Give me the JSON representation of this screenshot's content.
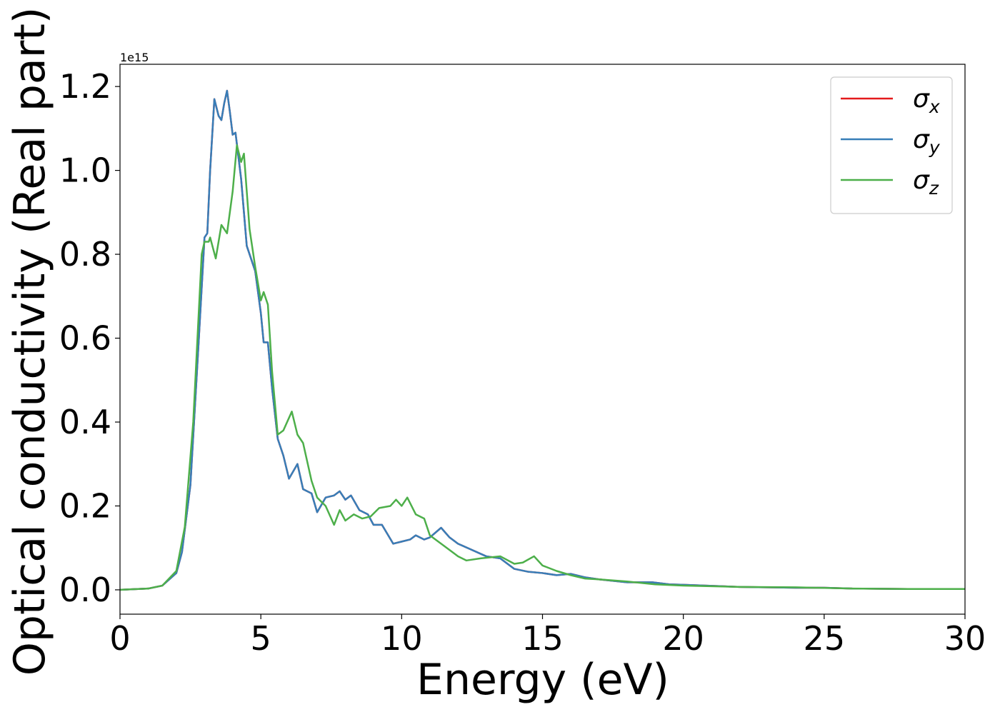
{
  "chart_data": {
    "type": "line",
    "xlabel": "Energy (eV)",
    "ylabel": "Optical conductivity (Real part)",
    "y_offset_text": "1e15",
    "xlim": [
      0,
      30
    ],
    "xticks": [
      0,
      5,
      10,
      15,
      20,
      25,
      30
    ],
    "ylim": [
      -0.058,
      1.253
    ],
    "yticks": [
      {
        "value": 0,
        "label": "0.0"
      },
      0.2,
      0.4,
      0.6,
      0.8,
      {
        "value": 1,
        "label": "1.0"
      },
      1.2
    ],
    "legend": "upper right",
    "series": [
      {
        "name": "σx",
        "color": "#e41a1c",
        "x": [
          0,
          1,
          1.5,
          2,
          2.2,
          2.5,
          2.8,
          3.0,
          3.1,
          3.2,
          3.35,
          3.5,
          3.6,
          3.7,
          3.8,
          3.9,
          4.0,
          4.1,
          4.3,
          4.5,
          4.8,
          5.0,
          5.1,
          5.25,
          5.4,
          5.6,
          5.8,
          6.0,
          6.3,
          6.5,
          6.8,
          7.0,
          7.3,
          7.6,
          7.8,
          8.0,
          8.2,
          8.5,
          8.8,
          9.0,
          9.3,
          9.7,
          10.0,
          10.3,
          10.5,
          10.8,
          11.0,
          11.4,
          11.7,
          12.0,
          12.5,
          13.0,
          13.5,
          14.0,
          14.5,
          15.0,
          15.5,
          16.0,
          16.5,
          17.0,
          18,
          18.9,
          19.5,
          20,
          22,
          24,
          25,
          26,
          28,
          30
        ],
        "values": [
          0,
          0.003,
          0.01,
          0.04,
          0.09,
          0.25,
          0.6,
          0.84,
          0.85,
          1.0,
          1.17,
          1.13,
          1.12,
          1.16,
          1.19,
          1.14,
          1.085,
          1.09,
          0.98,
          0.82,
          0.76,
          0.66,
          0.59,
          0.59,
          0.48,
          0.36,
          0.32,
          0.265,
          0.3,
          0.24,
          0.23,
          0.185,
          0.22,
          0.225,
          0.235,
          0.215,
          0.225,
          0.19,
          0.18,
          0.155,
          0.155,
          0.11,
          0.115,
          0.12,
          0.13,
          0.12,
          0.125,
          0.148,
          0.125,
          0.11,
          0.095,
          0.08,
          0.075,
          0.05,
          0.043,
          0.04,
          0.035,
          0.038,
          0.03,
          0.025,
          0.018,
          0.018,
          0.013,
          0.012,
          0.007,
          0.005,
          0.005,
          0.003,
          0.002,
          0.002
        ]
      },
      {
        "name": "σy",
        "color": "#377eb8",
        "x": [
          0,
          1,
          1.5,
          2,
          2.2,
          2.5,
          2.8,
          3.0,
          3.1,
          3.2,
          3.35,
          3.5,
          3.6,
          3.7,
          3.8,
          3.9,
          4.0,
          4.1,
          4.3,
          4.5,
          4.8,
          5.0,
          5.1,
          5.25,
          5.4,
          5.6,
          5.8,
          6.0,
          6.3,
          6.5,
          6.8,
          7.0,
          7.3,
          7.6,
          7.8,
          8.0,
          8.2,
          8.5,
          8.8,
          9.0,
          9.3,
          9.7,
          10.0,
          10.3,
          10.5,
          10.8,
          11.0,
          11.4,
          11.7,
          12.0,
          12.5,
          13.0,
          13.5,
          14.0,
          14.5,
          15.0,
          15.5,
          16.0,
          16.5,
          17.0,
          18,
          18.9,
          19.5,
          20,
          22,
          24,
          25,
          26,
          28,
          30
        ],
        "values": [
          0,
          0.003,
          0.01,
          0.04,
          0.09,
          0.25,
          0.6,
          0.84,
          0.85,
          1.0,
          1.17,
          1.13,
          1.12,
          1.16,
          1.19,
          1.14,
          1.085,
          1.09,
          0.98,
          0.82,
          0.76,
          0.66,
          0.59,
          0.59,
          0.48,
          0.36,
          0.32,
          0.265,
          0.3,
          0.24,
          0.23,
          0.185,
          0.22,
          0.225,
          0.235,
          0.215,
          0.225,
          0.19,
          0.18,
          0.155,
          0.155,
          0.11,
          0.115,
          0.12,
          0.13,
          0.12,
          0.125,
          0.148,
          0.125,
          0.11,
          0.095,
          0.08,
          0.075,
          0.05,
          0.043,
          0.04,
          0.035,
          0.038,
          0.03,
          0.025,
          0.018,
          0.018,
          0.013,
          0.012,
          0.007,
          0.005,
          0.005,
          0.003,
          0.002,
          0.002
        ]
      },
      {
        "name": "σz",
        "color": "#4daf4a",
        "x": [
          0,
          1,
          1.5,
          2,
          2.3,
          2.6,
          2.9,
          3.0,
          3.15,
          3.2,
          3.4,
          3.6,
          3.8,
          4.0,
          4.15,
          4.3,
          4.4,
          4.6,
          4.8,
          5.0,
          5.1,
          5.25,
          5.4,
          5.6,
          5.8,
          6.1,
          6.3,
          6.5,
          6.8,
          7.0,
          7.3,
          7.6,
          7.8,
          8.0,
          8.3,
          8.6,
          8.9,
          9.2,
          9.6,
          9.8,
          10.0,
          10.2,
          10.5,
          10.8,
          11.0,
          11.5,
          12.0,
          12.3,
          12.8,
          13.5,
          14.0,
          14.3,
          14.7,
          15.0,
          15.5,
          16.0,
          16.5,
          17,
          18,
          19,
          20,
          22,
          24,
          26,
          28,
          30
        ],
        "values": [
          0,
          0.003,
          0.01,
          0.045,
          0.15,
          0.4,
          0.8,
          0.83,
          0.83,
          0.84,
          0.79,
          0.87,
          0.85,
          0.95,
          1.06,
          1.02,
          1.04,
          0.86,
          0.77,
          0.69,
          0.71,
          0.68,
          0.52,
          0.37,
          0.38,
          0.425,
          0.37,
          0.35,
          0.26,
          0.22,
          0.2,
          0.155,
          0.19,
          0.165,
          0.18,
          0.17,
          0.175,
          0.195,
          0.2,
          0.215,
          0.2,
          0.22,
          0.18,
          0.17,
          0.13,
          0.105,
          0.08,
          0.07,
          0.075,
          0.08,
          0.062,
          0.065,
          0.08,
          0.058,
          0.045,
          0.035,
          0.027,
          0.025,
          0.02,
          0.013,
          0.01,
          0.007,
          0.006,
          0.003,
          0.002,
          0.002
        ]
      }
    ]
  }
}
